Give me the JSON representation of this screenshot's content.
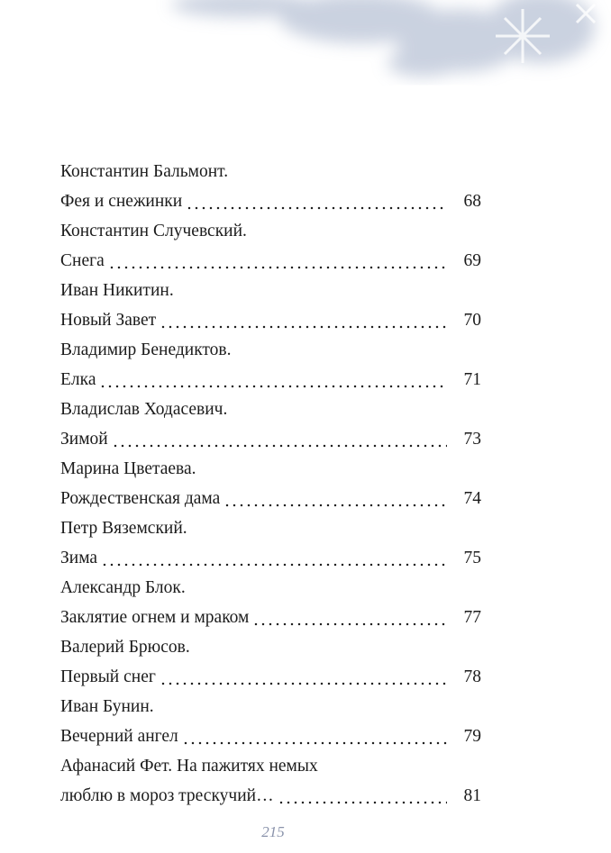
{
  "toc": {
    "entries": [
      {
        "author": "Константин Бальмонт.",
        "title": "Фея и снежинки",
        "page": "68"
      },
      {
        "author": "Константин Случевский.",
        "title": "Снега",
        "page": "69"
      },
      {
        "author": "Иван Никитин.",
        "title": "Новый Завет",
        "page": "70"
      },
      {
        "author": "Владимир Бенедиктов.",
        "title": "Елка",
        "page": "71"
      },
      {
        "author": "Владислав Ходасевич.",
        "title": "Зимой",
        "page": "73"
      },
      {
        "author": "Марина Цветаева.",
        "title": "Рождественская дама",
        "page": "74"
      },
      {
        "author": "Петр Вяземский.",
        "title": "Зима",
        "page": "75"
      },
      {
        "author": "Александр Блок.",
        "title": "Заклятие огнем и мраком",
        "page": "77"
      },
      {
        "author": "Валерий Брюсов.",
        "title": "Первый снег",
        "page": "78"
      },
      {
        "author": "Иван Бунин.",
        "title": "Вечерний ангел",
        "page": "79"
      },
      {
        "author": "Афанасий Фет. На пажитях немых",
        "title": "люблю в мороз трескучий…",
        "page": "81"
      }
    ]
  },
  "footer": {
    "page_number": "215"
  }
}
